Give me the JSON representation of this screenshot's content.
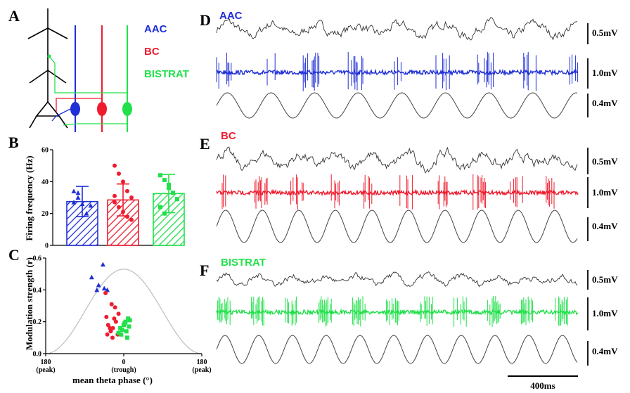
{
  "colors": {
    "aac": "#1f2fd6",
    "bc": "#ee1c2e",
    "bistrat": "#22e04b",
    "trace": "#333333"
  },
  "panel_a": {
    "letter": "A",
    "legend": [
      {
        "label": "AAC",
        "color": "#1f2fd6"
      },
      {
        "label": "BC",
        "color": "#ee1c2e"
      },
      {
        "label": "BISTRAT",
        "color": "#22e04b"
      }
    ]
  },
  "panel_b": {
    "letter": "B",
    "ylabel": "Firing frequency (Hz)",
    "yticks": [
      "0",
      "20",
      "40",
      "60"
    ]
  },
  "panel_c": {
    "letter": "C",
    "ylabel": "Modulation strength (r)",
    "xlabel": "mean theta phase (°)",
    "yticks": [
      "0.0",
      "0.2",
      "0.4",
      "0.6"
    ],
    "xticks": [
      {
        "value": "180",
        "note": "(peak)"
      },
      {
        "value": "0",
        "note": "(trough)"
      },
      {
        "value": "180",
        "note": "(peak)"
      }
    ]
  },
  "traces": {
    "D": {
      "letter": "D",
      "label": "AAC"
    },
    "E": {
      "letter": "E",
      "label": "BC"
    },
    "F": {
      "letter": "F",
      "label": "BISTRAT"
    },
    "scale_labels": [
      "0.5mV",
      "1.0mV",
      "0.4mV"
    ],
    "time_scale": "400ms"
  },
  "chart_data": [
    {
      "type": "bar",
      "title": "",
      "xlabel": "",
      "ylabel": "Firing frequency (Hz)",
      "ylim": [
        0,
        60
      ],
      "categories": [
        "AAC",
        "BC",
        "BISTRAT"
      ],
      "values": [
        27.5,
        28.5,
        32.5
      ],
      "errors": [
        9.5,
        10,
        12
      ],
      "points": [
        [
          34,
          33,
          26,
          20,
          25,
          27,
          30
        ],
        [
          50,
          45,
          40,
          34,
          30,
          27,
          24,
          21,
          18,
          16,
          31
        ],
        [
          44,
          41,
          38,
          33,
          29,
          24,
          20,
          36
        ]
      ]
    },
    {
      "type": "scatter",
      "title": "",
      "xlabel": "mean theta phase (°)",
      "ylabel": "Modulation strength (r)",
      "xlim": [
        -180,
        180
      ],
      "ylim": [
        0,
        0.6
      ],
      "series": [
        {
          "name": "AAC",
          "marker": "triangle",
          "x": [
            -74,
            -62,
            -58,
            -48,
            -45,
            -38
          ],
          "y": [
            0.48,
            0.4,
            0.43,
            0.56,
            0.41,
            0.4
          ]
        },
        {
          "name": "BC",
          "marker": "circle",
          "x": [
            -42,
            -40,
            -28,
            -20,
            -36,
            -12,
            -25,
            -30,
            -18,
            -26,
            -14,
            -32,
            -22,
            -38
          ],
          "y": [
            0.38,
            0.23,
            0.31,
            0.29,
            0.18,
            0.25,
            0.16,
            0.14,
            0.2,
            0.1,
            0.12,
            0.16,
            0.22,
            0.12
          ]
        },
        {
          "name": "BISTRAT",
          "marker": "square",
          "x": [
            -12,
            -8,
            -4,
            0,
            4,
            8,
            10,
            12,
            14,
            6,
            2,
            -6
          ],
          "y": [
            0.13,
            0.16,
            0.15,
            0.18,
            0.2,
            0.1,
            0.22,
            0.17,
            0.21,
            0.14,
            0.19,
            0.12
          ]
        }
      ]
    }
  ]
}
